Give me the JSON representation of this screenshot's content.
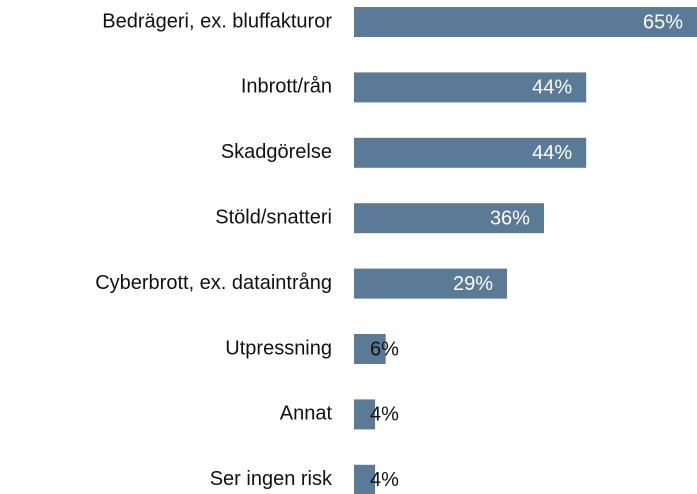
{
  "chart_data": {
    "type": "bar",
    "orientation": "horizontal",
    "categories": [
      "Bedrägeri, ex. bluffakturor",
      "Inbrott/rån",
      "Skadgörelse",
      "Stöld/snatteri",
      "Cyberbrott, ex. dataintrång",
      "Utpressning",
      "Annat",
      "Ser ingen risk"
    ],
    "values": [
      65,
      44,
      44,
      36,
      29,
      6,
      4,
      4
    ],
    "value_labels": [
      "65%",
      "44%",
      "44%",
      "36%",
      "29%",
      "6%",
      "4%",
      "4%"
    ],
    "color": "#5b7a95",
    "xlim": [
      0,
      65
    ]
  }
}
